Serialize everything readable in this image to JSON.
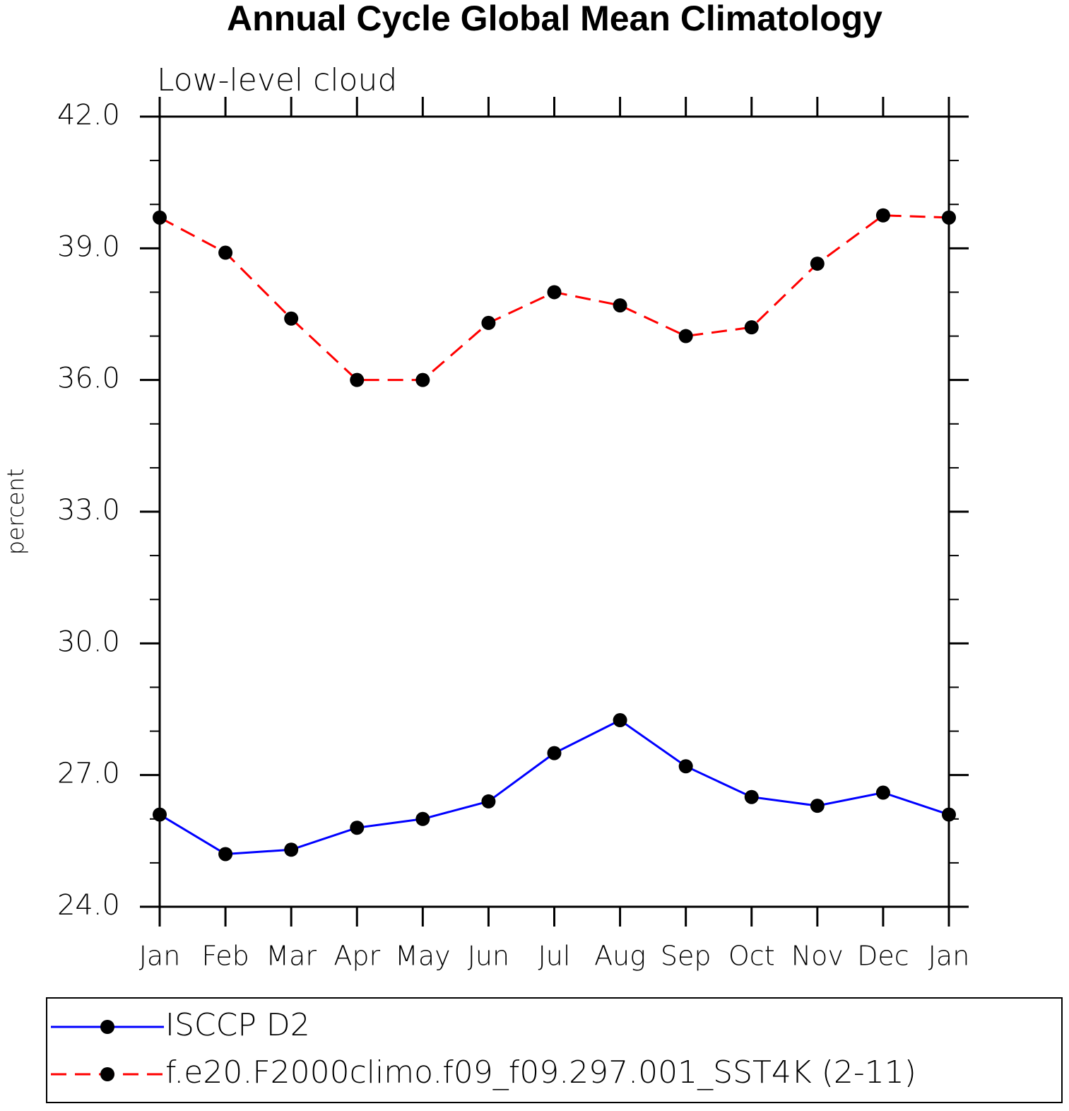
{
  "chart_data": {
    "type": "line",
    "title": "Annual Cycle Global Mean Climatology",
    "subtitle": "Low-level cloud",
    "y_label": "percent",
    "categories": [
      "Jan",
      "Feb",
      "Mar",
      "Apr",
      "May",
      "Jun",
      "Jul",
      "Aug",
      "Sep",
      "Oct",
      "Nov",
      "Dec",
      "Jan"
    ],
    "series": [
      {
        "name": "ISCCP D2",
        "color": "#0000ff",
        "dash": false,
        "values": [
          26.1,
          25.2,
          25.3,
          25.8,
          26.0,
          26.4,
          27.5,
          28.25,
          27.2,
          26.5,
          26.3,
          26.6,
          26.1
        ]
      },
      {
        "name": "f.e20.F2000climo.f09_f09.297.001_SST4K (2-11)",
        "color": "#ff0000",
        "dash": true,
        "values": [
          39.7,
          38.9,
          37.4,
          36.0,
          36.0,
          37.3,
          38.0,
          37.7,
          37.0,
          37.2,
          38.65,
          39.75,
          39.7
        ]
      }
    ],
    "ylim": [
      24,
      42
    ],
    "yticks": [
      {
        "value": 24,
        "label": "24.0"
      },
      {
        "value": 27,
        "label": "27.0"
      },
      {
        "value": 30,
        "label": "30.0"
      },
      {
        "value": 33,
        "label": "33.0"
      },
      {
        "value": 36,
        "label": "36.0"
      },
      {
        "value": 39,
        "label": "39.0"
      },
      {
        "value": 42,
        "label": "42.0"
      }
    ],
    "yminorticks": [
      25,
      26,
      28,
      29,
      31,
      32,
      34,
      35,
      37,
      38,
      40,
      41
    ],
    "grid": false
  }
}
